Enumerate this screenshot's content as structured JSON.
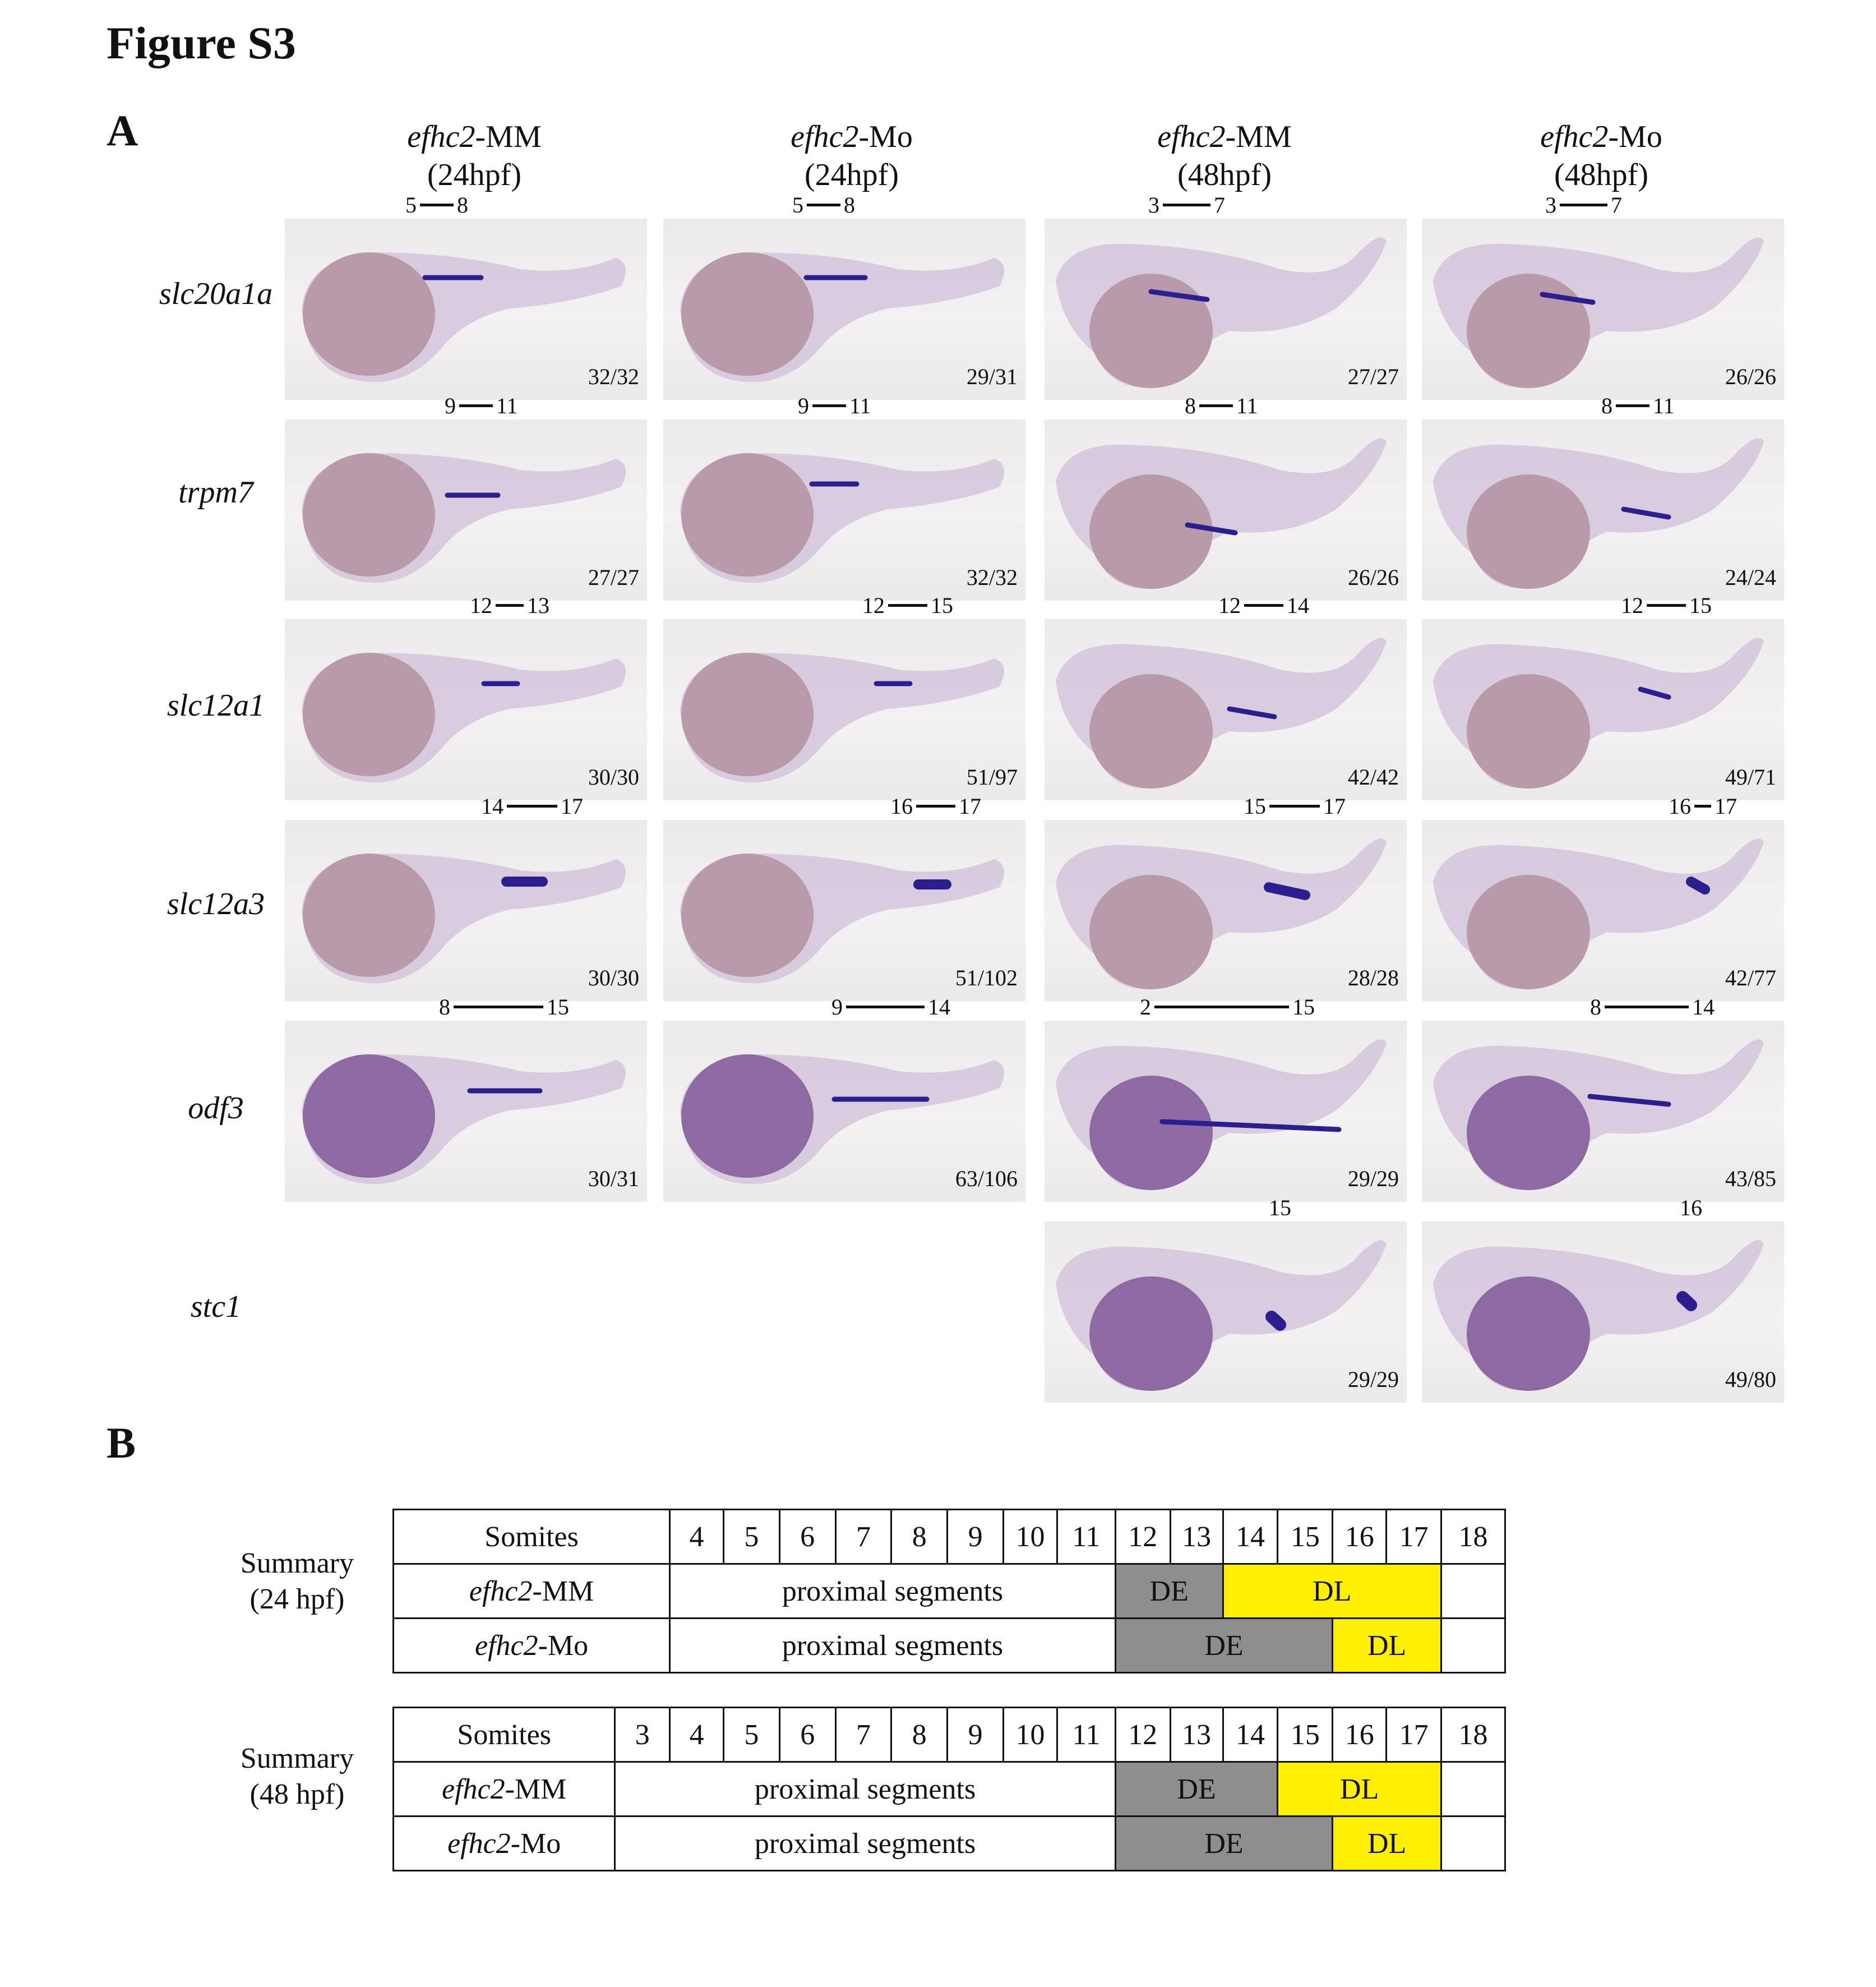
{
  "figure_title": "Figure S3",
  "panel_a_label": "A",
  "panel_b_label": "B",
  "columns": [
    {
      "gene": "efhc2",
      "suffix": "-MM",
      "time": "(24hpf)"
    },
    {
      "gene": "efhc2",
      "suffix": "-Mo",
      "time": "(24hpf)"
    },
    {
      "gene": "efhc2",
      "suffix": "-MM",
      "time": "(48hpf)"
    },
    {
      "gene": "efhc2",
      "suffix": "-Mo",
      "time": "(48hpf)"
    }
  ],
  "rows": [
    "slc20a1a",
    "trpm7",
    "slc12a1",
    "slc12a3",
    "odf3",
    "stc1"
  ],
  "tiles": {
    "r0c0": {
      "count": "32/32",
      "start": "5",
      "end": "8"
    },
    "r0c1": {
      "count": "29/31",
      "start": "5",
      "end": "8"
    },
    "r0c2": {
      "count": "27/27",
      "start": "3",
      "end": "7"
    },
    "r0c3": {
      "count": "26/26",
      "start": "3",
      "end": "7"
    },
    "r1c0": {
      "count": "27/27",
      "start": "9",
      "end": "11"
    },
    "r1c1": {
      "count": "32/32",
      "start": "9",
      "end": "11"
    },
    "r1c2": {
      "count": "26/26",
      "start": "8",
      "end": "11"
    },
    "r1c3": {
      "count": "24/24",
      "start": "8",
      "end": "11"
    },
    "r2c0": {
      "count": "30/30",
      "start": "12",
      "end": "13"
    },
    "r2c1": {
      "count": "51/97",
      "start": "12",
      "end": "15"
    },
    "r2c2": {
      "count": "42/42",
      "start": "12",
      "end": "14"
    },
    "r2c3": {
      "count": "49/71",
      "start": "12",
      "end": "15"
    },
    "r3c0": {
      "count": "30/30",
      "start": "14",
      "end": "17"
    },
    "r3c1": {
      "count": "51/102",
      "start": "16",
      "end": "17"
    },
    "r3c2": {
      "count": "28/28",
      "start": "15",
      "end": "17"
    },
    "r3c3": {
      "count": "42/77",
      "start": "16",
      "end": "17"
    },
    "r4c0": {
      "count": "30/31",
      "start": "8",
      "end": "15"
    },
    "r4c1": {
      "count": "63/106",
      "start": "9",
      "end": "14"
    },
    "r4c2": {
      "count": "29/29",
      "start": "2",
      "end": "15"
    },
    "r4c3": {
      "count": "43/85",
      "start": "8",
      "end": "14"
    },
    "r5c2": {
      "count": "29/29",
      "single": "15"
    },
    "r5c3": {
      "count": "49/80",
      "single": "16"
    }
  },
  "summary_24": {
    "label_line1": "Summary",
    "label_line2": "(24 hpf)",
    "header": "Somites",
    "somites": [
      "4",
      "5",
      "6",
      "7",
      "8",
      "9",
      "10",
      "11",
      "12",
      "13",
      "14",
      "15",
      "16",
      "17",
      "18"
    ],
    "mm_gene": "efhc2",
    "mm_suffix": "-MM",
    "mo_gene": "efhc2",
    "mo_suffix": "-Mo",
    "proximal": "proximal segments",
    "de": "DE",
    "dl": "DL"
  },
  "summary_48": {
    "label_line1": "Summary",
    "label_line2": "(48 hpf)",
    "header": "Somites",
    "somites": [
      "3",
      "4",
      "5",
      "6",
      "7",
      "8",
      "9",
      "10",
      "11",
      "12",
      "13",
      "14",
      "15",
      "16",
      "17",
      "18"
    ],
    "mm_gene": "efhc2",
    "mm_suffix": "-MM",
    "mo_gene": "efhc2",
    "mo_suffix": "-Mo",
    "proximal": "proximal segments",
    "de": "DE",
    "dl": "DL"
  }
}
